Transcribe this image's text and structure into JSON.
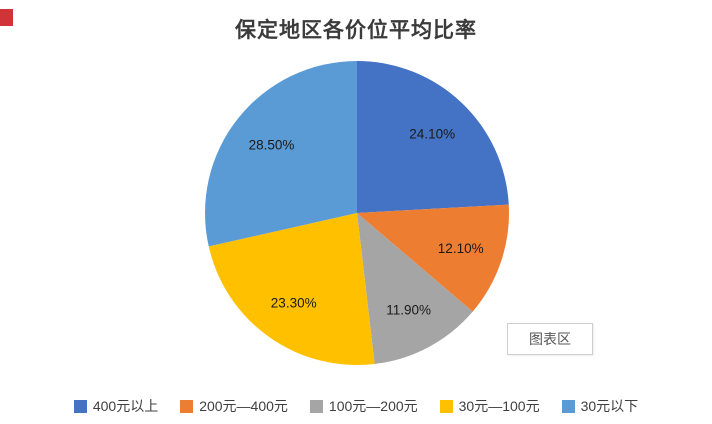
{
  "title": "保定地区各价位平均比率",
  "chart_area_label": "图表区",
  "chart_data": {
    "type": "pie",
    "title": "保定地区各价位平均比率",
    "categories": [
      "400元以上",
      "200元—400元",
      "100元—200元",
      "30元—100元",
      "30元以下"
    ],
    "values": [
      24.1,
      12.1,
      11.9,
      23.3,
      28.5
    ],
    "labels": [
      "24.10%",
      "12.10%",
      "11.90%",
      "23.30%",
      "28.50%"
    ],
    "colors": [
      "#4472C4",
      "#ED7D31",
      "#A5A5A5",
      "#FFC000",
      "#5B9BD5"
    ],
    "start_angle_deg": 0,
    "direction": "clockwise",
    "legend_position": "bottom"
  }
}
